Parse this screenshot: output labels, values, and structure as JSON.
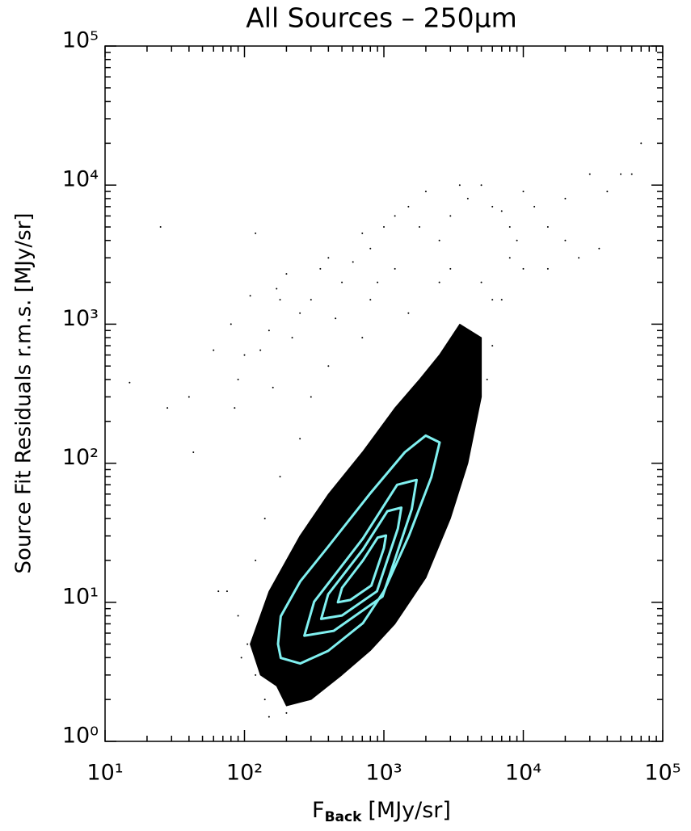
{
  "chart_data": {
    "type": "scatter",
    "title": "All Sources – 250μm",
    "xlabel": {
      "main": "F",
      "sub": "Back",
      "unit": "[MJy/sr]"
    },
    "ylabel": "Source Fit Residuals r.m.s. [MJy/sr]",
    "log_x": true,
    "log_y": true,
    "xlim": [
      10,
      100000
    ],
    "ylim": [
      1,
      100000
    ],
    "xticks": [
      {
        "value": 10,
        "label": "10¹"
      },
      {
        "value": 100,
        "label": "10²"
      },
      {
        "value": 1000,
        "label": "10³"
      },
      {
        "value": 10000,
        "label": "10⁴"
      },
      {
        "value": 100000,
        "label": "10⁵"
      }
    ],
    "yticks": [
      {
        "value": 1,
        "label": "10⁰"
      },
      {
        "value": 10,
        "label": "10¹"
      },
      {
        "value": 100,
        "label": "10²"
      },
      {
        "value": 1000,
        "label": "10³"
      },
      {
        "value": 10000,
        "label": "10⁴"
      },
      {
        "value": 100000,
        "label": "10⁵"
      }
    ],
    "xticks_minor": [
      20,
      30,
      40,
      50,
      60,
      70,
      80,
      90,
      200,
      300,
      400,
      500,
      600,
      700,
      800,
      900,
      2000,
      3000,
      4000,
      5000,
      6000,
      7000,
      8000,
      9000,
      20000,
      30000,
      40000,
      50000,
      60000,
      70000,
      80000,
      90000
    ],
    "yticks_minor": [
      2,
      3,
      4,
      5,
      6,
      7,
      8,
      9,
      20,
      30,
      40,
      50,
      60,
      70,
      80,
      90,
      200,
      300,
      400,
      500,
      600,
      700,
      800,
      900,
      2000,
      3000,
      4000,
      5000,
      6000,
      7000,
      8000,
      9000,
      20000,
      30000,
      40000,
      50000,
      60000,
      70000,
      80000,
      90000
    ],
    "point_color": "#000000",
    "x": [
      15,
      25,
      28,
      40,
      43,
      60,
      65,
      75,
      80,
      85,
      90,
      100,
      110,
      120,
      130,
      150,
      160,
      170,
      180,
      200,
      220,
      250,
      300,
      350,
      400,
      450,
      500,
      600,
      700,
      800,
      900,
      1000,
      1200,
      1500,
      1800,
      2000,
      2500,
      3000,
      3500,
      4000,
      5000,
      6000,
      7000,
      8000,
      9000,
      10000,
      12000,
      15000,
      20000,
      25000,
      30000,
      35000,
      40000,
      50000,
      60000,
      70000,
      8000,
      5000,
      3000,
      6000,
      10000,
      15000,
      20000,
      120,
      140,
      150,
      105,
      90,
      95,
      200,
      5500,
      6000,
      7000,
      4000,
      1500,
      700,
      400,
      300,
      250,
      180,
      140,
      120,
      800,
      1200,
      2500
    ],
    "y": [
      380,
      5000,
      250,
      300,
      120,
      650,
      12,
      12,
      1000,
      250,
      400,
      600,
      1600,
      4500,
      650,
      900,
      350,
      1800,
      1500,
      2300,
      800,
      1200,
      1500,
      2500,
      3000,
      1100,
      2000,
      2800,
      4500,
      3500,
      2000,
      5000,
      6000,
      7000,
      5000,
      9000,
      4000,
      6000,
      10000,
      8000,
      10000,
      7000,
      6500,
      5000,
      4000,
      9000,
      7000,
      5000,
      8000,
      3000,
      12000,
      3500,
      9000,
      12000,
      12000,
      20000,
      3000,
      2000,
      2500,
      1500,
      2500,
      2500,
      4000,
      3,
      2,
      1.5,
      5,
      8,
      4,
      1.6,
      400,
      700,
      1500,
      600,
      1200,
      800,
      500,
      300,
      150,
      80,
      40,
      20,
      1500,
      2500,
      2000
    ],
    "contours": [
      {
        "color": "#000000",
        "fill": true,
        "x": [
          170,
          200,
          300,
          500,
          800,
          1200,
          2000,
          3000,
          4000,
          5000,
          5000,
          3500,
          2500,
          1800,
          1200,
          700,
          400,
          250,
          150,
          110,
          130
        ],
        "y": [
          2.5,
          1.8,
          2.0,
          3,
          4.5,
          7,
          15,
          40,
          100,
          300,
          800,
          1000,
          600,
          400,
          250,
          120,
          60,
          30,
          12,
          5,
          3
        ]
      },
      {
        "color": "#80f0f0",
        "fill": false,
        "x": [
          182,
          251,
          398,
          708,
          1000,
          1514,
          2188,
          2512,
          1995,
          1413,
          794,
          398,
          251,
          182,
          174
        ],
        "y": [
          3.98,
          3.63,
          4.47,
          7.08,
          12.0,
          30.2,
          79.4,
          141,
          158,
          120,
          60.3,
          25.1,
          14.1,
          7.94,
          5.01
        ]
      },
      {
        "color": "#80f0f0",
        "fill": false,
        "x": [
          269,
          437,
          977,
          1585,
          1718,
          1245,
          708,
          316
        ],
        "y": [
          5.75,
          6.24,
          11.0,
          46.8,
          75.9,
          70.0,
          28.8,
          10.1
        ]
      },
      {
        "color": "#80f0f0",
        "fill": false,
        "x": [
          355,
          501,
          891,
          1259,
          1334,
          1059,
          708,
          398
        ],
        "y": [
          7.59,
          8.04,
          12.0,
          33.9,
          47.9,
          45.2,
          24.0,
          11.4
        ]
      },
      {
        "color": "#80f0f0",
        "fill": false,
        "x": [
          468,
          575,
          813,
          1000,
          1035,
          902,
          708,
          501
        ],
        "y": [
          10.0,
          10.4,
          13.2,
          24.5,
          30.2,
          29.2,
          20.0,
          12.7
        ]
      }
    ]
  }
}
